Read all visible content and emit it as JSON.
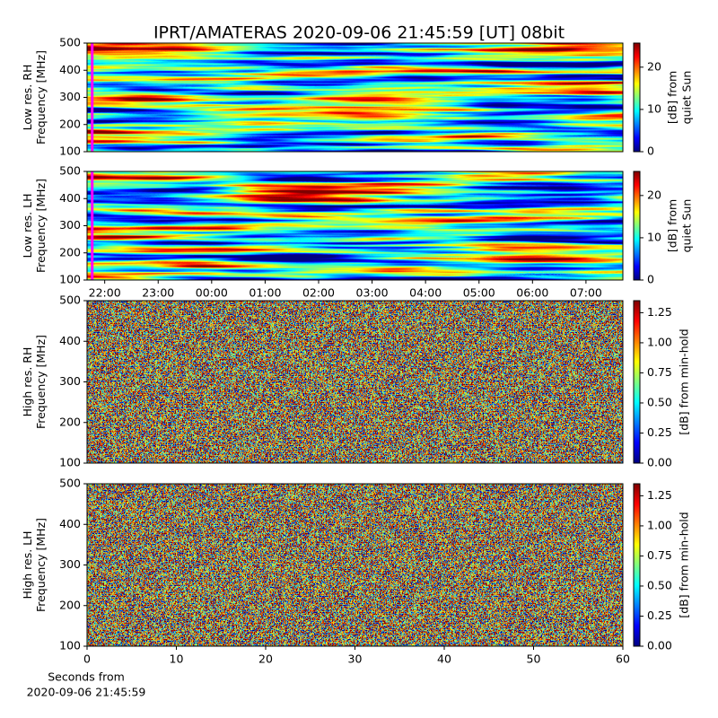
{
  "title": "IPRT/AMATERAS 2020-09-06 21:45:59 [UT]   08bit",
  "chart_data": [
    {
      "type": "heatmap",
      "ylabel": [
        "Low res. RH",
        "Frequency [MHz]"
      ],
      "ylim": [
        100,
        500
      ],
      "yticks": [
        100,
        200,
        300,
        400,
        500
      ],
      "colorbar_label": [
        "[dB] from",
        "quiet Sun"
      ],
      "clim": [
        0,
        25.7
      ],
      "cticks": [
        0,
        10,
        20
      ],
      "marker_x": 21.766,
      "marker_color": "#ff00ff",
      "xlim": [
        21.67,
        31.69
      ]
    },
    {
      "type": "heatmap",
      "ylabel": [
        "Low res. LH",
        "Frequency [MHz]"
      ],
      "ylim": [
        100,
        500
      ],
      "yticks": [
        100,
        200,
        300,
        400,
        500
      ],
      "colorbar_label": [
        "[dB] from",
        "quiet Sun"
      ],
      "clim": [
        0,
        25.7
      ],
      "cticks": [
        0,
        10,
        20
      ],
      "marker_x": 21.766,
      "marker_color": "#ff00ff",
      "xlim": [
        21.67,
        31.69
      ],
      "xticks": [
        {
          "value": 22,
          "label": "22:00"
        },
        {
          "value": 23,
          "label": "23:00"
        },
        {
          "value": 24,
          "label": "00:00"
        },
        {
          "value": 25,
          "label": "01:00"
        },
        {
          "value": 26,
          "label": "02:00"
        },
        {
          "value": 27,
          "label": "03:00"
        },
        {
          "value": 28,
          "label": "04:00"
        },
        {
          "value": 29,
          "label": "05:00"
        },
        {
          "value": 30,
          "label": "06:00"
        },
        {
          "value": 31,
          "label": "07:00"
        }
      ]
    },
    {
      "type": "heatmap",
      "ylabel": [
        "High res. RH",
        "Frequency [MHz]"
      ],
      "ylim": [
        100,
        500
      ],
      "yticks": [
        100,
        200,
        300,
        400,
        500
      ],
      "colorbar_label": [
        "[dB] from min-hold"
      ],
      "clim": [
        0,
        1.35
      ],
      "cticks": [
        {
          "value": 0,
          "label": "0.00"
        },
        {
          "value": 0.25,
          "label": "0.25"
        },
        {
          "value": 0.5,
          "label": "0.50"
        },
        {
          "value": 0.75,
          "label": "0.75"
        },
        {
          "value": 1,
          "label": "1.00"
        },
        {
          "value": 1.25,
          "label": "1.25"
        }
      ]
    },
    {
      "type": "heatmap",
      "ylabel": [
        "High res. LH",
        "Frequency [MHz]"
      ],
      "ylim": [
        100,
        500
      ],
      "yticks": [
        100,
        200,
        300,
        400,
        500
      ],
      "colorbar_label": [
        "[dB] from min-hold"
      ],
      "clim": [
        0,
        1.35
      ],
      "cticks": [
        {
          "value": 0,
          "label": "0.00"
        },
        {
          "value": 0.25,
          "label": "0.25"
        },
        {
          "value": 0.5,
          "label": "0.50"
        },
        {
          "value": 0.75,
          "label": "0.75"
        },
        {
          "value": 1,
          "label": "1.00"
        },
        {
          "value": 1.25,
          "label": "1.25"
        }
      ],
      "xlim": [
        0,
        60
      ],
      "xticks": [
        0,
        10,
        20,
        30,
        40,
        50,
        60
      ],
      "xlabel": [
        "Seconds from",
        "2020-09-06 21:45:59"
      ]
    }
  ]
}
